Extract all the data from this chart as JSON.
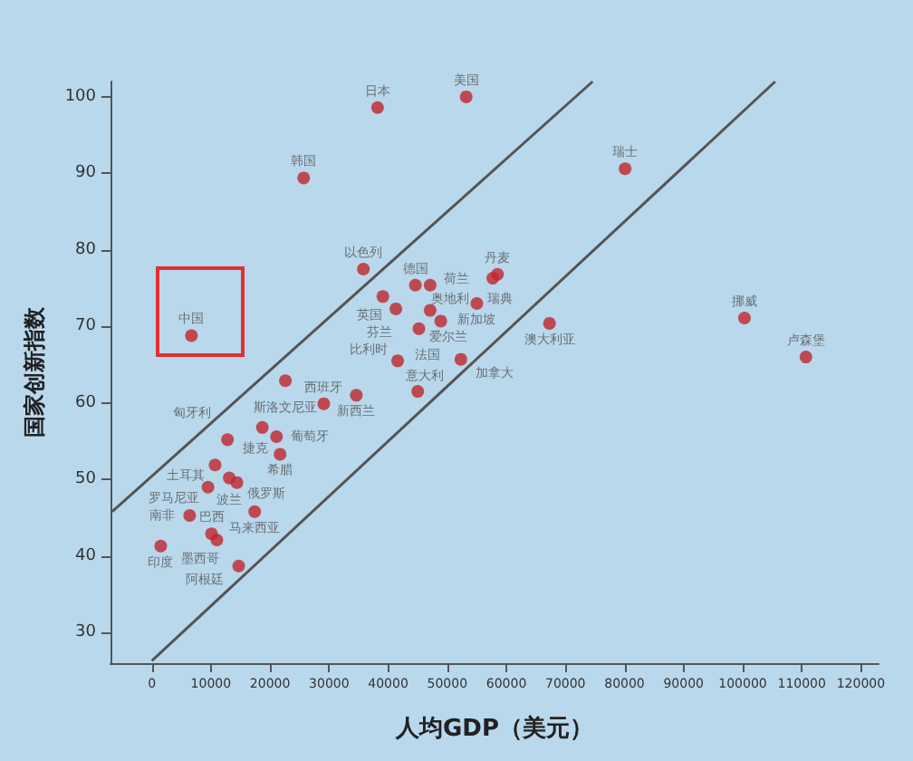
{
  "chart_data": {
    "type": "scatter",
    "xlabel": "人均GDP（美元）",
    "ylabel": "国家创新指数",
    "xlim": [
      -7000,
      123000
    ],
    "xticks": [
      0,
      10000,
      20000,
      30000,
      40000,
      50000,
      60000,
      70000,
      80000,
      90000,
      100000,
      110000,
      120000
    ],
    "ylim": [
      26,
      102
    ],
    "yticks": [
      30,
      40,
      50,
      60,
      70,
      80,
      90,
      100
    ],
    "grid": false,
    "marker": "circle",
    "series": [
      {
        "color": "#c0262b",
        "x": [
          53200,
          38200,
          25700,
          80100,
          100300,
          110700,
          6700,
          35800,
          44600,
          47100,
          39100,
          41300,
          47100,
          48900,
          45200,
          41600,
          58500,
          57700,
          55000,
          67300,
          22600,
          29100,
          34600,
          45000,
          52300,
          18700,
          12800,
          10700,
          9500,
          6400,
          21100,
          21700,
          13100,
          14400,
          17400,
          1500,
          11000,
          10100,
          14700
        ],
        "values": [
          100,
          98.6,
          89.4,
          90.6,
          71.1,
          66,
          68.8,
          77.5,
          75.4,
          75.4,
          73.9,
          72.3,
          72.1,
          70.7,
          69.7,
          65.5,
          76.8,
          76.3,
          73,
          70.4,
          62.9,
          59.9,
          61,
          61.5,
          65.7,
          56.8,
          55.2,
          51.9,
          49,
          45.3,
          55.6,
          53.3,
          50.2,
          49.6,
          45.8,
          41.3,
          42.1,
          42.9,
          38.7
        ],
        "value_labels": [
          "美国",
          "日本",
          "韩国",
          "瑞士",
          "挪威",
          "卢森堡",
          "中国",
          "以色列",
          "德国",
          "荷兰",
          "英国",
          "芬兰",
          "奥地利",
          "爱尔兰",
          "法国",
          "比利时",
          "丹麦",
          "瑞典",
          "新加坡",
          "澳大利亚",
          "斯洛文尼亚",
          "西班牙",
          "新西兰",
          "意大利",
          "加拿大",
          "捷克",
          "匈牙利",
          "土耳其",
          "罗马尼亚",
          "南非",
          "葡萄牙",
          "希腊",
          "波兰",
          "俄罗斯",
          "马来西亚",
          "印度",
          "墨西哥",
          "巴西",
          "阿根廷"
        ]
      },
      {
        "type": "line",
        "color": "#555555",
        "line_style": "solid",
        "marker": "none",
        "x": [
          -6700,
          74600
        ],
        "values": [
          45.8,
          102
        ]
      },
      {
        "type": "line",
        "color": "#555555",
        "line_style": "solid",
        "marker": "none",
        "x": [
          0,
          105500
        ],
        "values": [
          26.3,
          102
        ]
      }
    ]
  }
}
